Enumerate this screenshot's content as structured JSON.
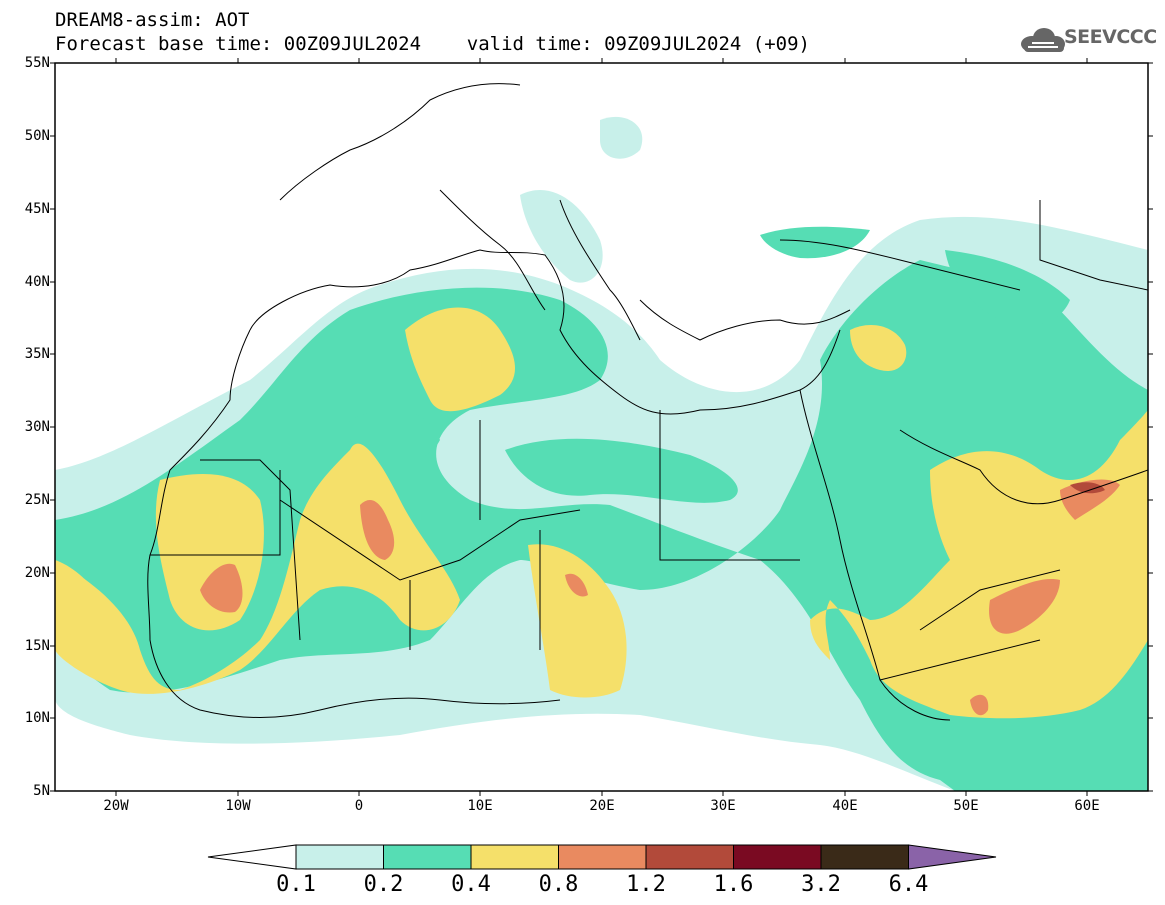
{
  "header": {
    "line1": "DREAM8-assim: AOT",
    "line2": "Forecast base time: 00Z09JUL2024    valid time: 09Z09JUL2024 (+09)"
  },
  "logo": {
    "name": "cloud-logo-icon",
    "text": "SEEVCCC"
  },
  "map": {
    "variable": "AOT",
    "lat_labels": [
      "55N",
      "50N",
      "45N",
      "40N",
      "35N",
      "30N",
      "25N",
      "20N",
      "15N",
      "10N",
      "5N"
    ],
    "lon_labels": [
      "20W",
      "10W",
      "0",
      "10E",
      "20E",
      "30E",
      "40E",
      "50E",
      "60E"
    ],
    "lat_range": [
      5,
      55
    ],
    "lon_range": [
      -25,
      65
    ]
  },
  "colorbar": {
    "labels": [
      "0.1",
      "0.2",
      "0.4",
      "0.8",
      "1.2",
      "1.6",
      "3.2",
      "6.4"
    ],
    "colors": [
      "#ffffff",
      "#c8f0ea",
      "#56ddb4",
      "#f5e06a",
      "#e98a60",
      "#b24a3a",
      "#7a0a22",
      "#3a2a18",
      "#8a63a8"
    ]
  },
  "colors": {
    "aot_01_02": "#c8f0ea",
    "aot_02_04": "#56ddb4",
    "aot_04_08": "#f5e06a",
    "aot_08_12": "#e98a60",
    "aot_12_16": "#b24a3a"
  }
}
